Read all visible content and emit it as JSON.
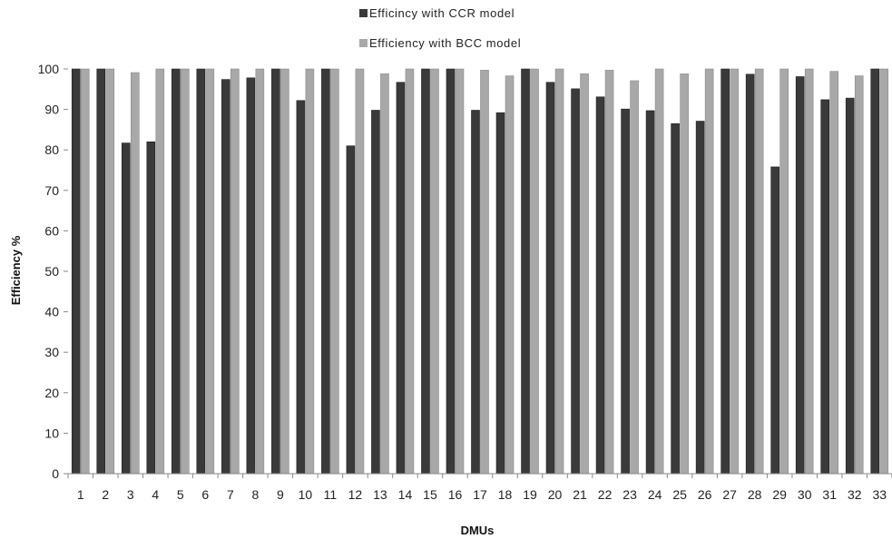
{
  "chart_data": {
    "type": "bar",
    "title": "",
    "xlabel": "DMUs",
    "ylabel": "Efficiency %",
    "ylim": [
      0,
      100
    ],
    "yticks": [
      0,
      10,
      20,
      30,
      40,
      50,
      60,
      70,
      80,
      90,
      100
    ],
    "grid": false,
    "legend_position": "top-center",
    "categories": [
      "1",
      "2",
      "3",
      "4",
      "5",
      "6",
      "7",
      "8",
      "9",
      "10",
      "11",
      "12",
      "13",
      "14",
      "15",
      "16",
      "17",
      "18",
      "19",
      "20",
      "21",
      "22",
      "23",
      "24",
      "25",
      "26",
      "27",
      "28",
      "29",
      "30",
      "31",
      "32",
      "33"
    ],
    "series": [
      {
        "name": "Efficincy with CCR model",
        "color": "#3a3a3a",
        "values": [
          100,
          100,
          81.7,
          82,
          100,
          100,
          97.4,
          97.8,
          100,
          92.2,
          100,
          81,
          89.8,
          96.7,
          100,
          100,
          89.8,
          89.2,
          100,
          96.7,
          95.1,
          93.1,
          90.1,
          89.7,
          86.5,
          87.1,
          100,
          98.7,
          75.8,
          98.1,
          92.4,
          92.8,
          100
        ]
      },
      {
        "name": "Efficiency with BCC model",
        "color": "#a8a8a8",
        "values": [
          100,
          100,
          99.1,
          100,
          100,
          100,
          100,
          100,
          100,
          100,
          100,
          100,
          98.8,
          100,
          100,
          100,
          99.7,
          98.3,
          100,
          100,
          98.8,
          99.7,
          97.1,
          100,
          98.8,
          100,
          100,
          100,
          100,
          100,
          99.4,
          98.3,
          100
        ]
      }
    ]
  }
}
